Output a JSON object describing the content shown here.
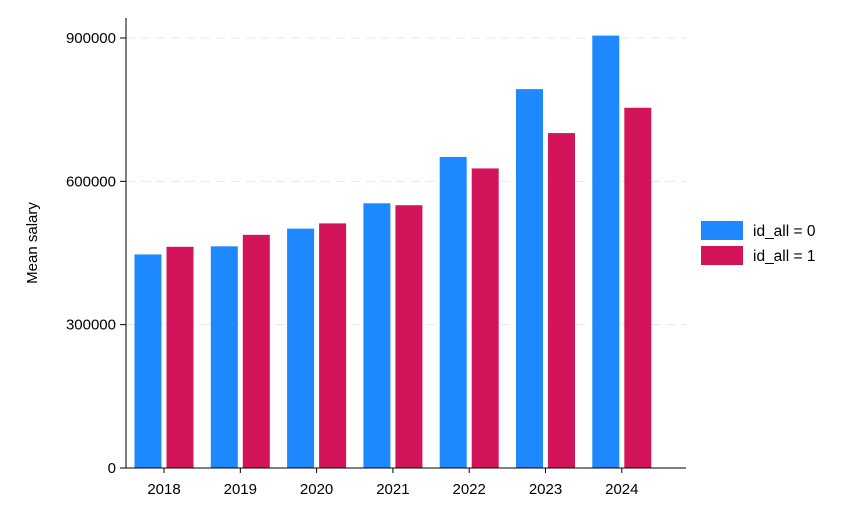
{
  "chart_data": {
    "type": "bar",
    "title": "",
    "xlabel": "",
    "ylabel": "Mean salary",
    "categories": [
      "2018",
      "2019",
      "2020",
      "2021",
      "2022",
      "2023",
      "2024"
    ],
    "series": [
      {
        "name": "id_all = 0",
        "color": "#1e88ff",
        "values": [
          447000,
          464000,
          501000,
          554000,
          651000,
          793000,
          905000
        ]
      },
      {
        "name": "id_all = 1",
        "color": "#d4145a",
        "values": [
          463000,
          488000,
          512000,
          550000,
          627000,
          701000,
          754000
        ]
      }
    ],
    "ylim": [
      0,
      900000
    ],
    "yticks": [
      0,
      300000,
      600000,
      900000
    ],
    "ytick_labels": [
      "0",
      "300000",
      "600000",
      "900000"
    ],
    "grid": "horizontal dashed",
    "legend_position": "right"
  }
}
